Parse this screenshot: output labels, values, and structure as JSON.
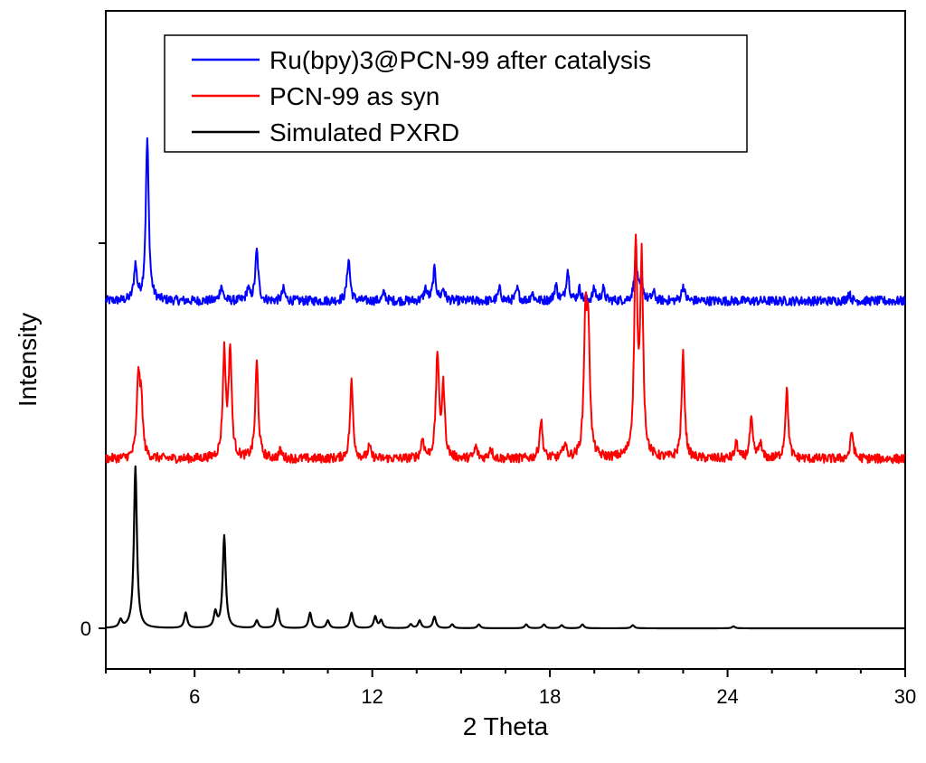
{
  "chart_data": {
    "type": "line",
    "xlabel": "2 Theta",
    "ylabel": "Intensity",
    "xlim": [
      3.0,
      30.0
    ],
    "x_ticks": [
      6,
      12,
      18,
      24,
      30
    ],
    "x_tick_labels": [
      "6",
      "12",
      "18",
      "24",
      "30"
    ],
    "y_tick_labels": [
      "0",
      ""
    ],
    "legend_position": "top-left",
    "series": [
      {
        "name": "Ru(bpy)3@PCN-99 after catalysis",
        "color": "#0000ff",
        "baseline": 0.85,
        "noise": 0.012,
        "peaks": [
          [
            4.0,
            0.09
          ],
          [
            4.4,
            0.42
          ],
          [
            6.9,
            0.04
          ],
          [
            7.8,
            0.03
          ],
          [
            8.1,
            0.13
          ],
          [
            9.0,
            0.03
          ],
          [
            11.2,
            0.11
          ],
          [
            12.4,
            0.02
          ],
          [
            13.8,
            0.03
          ],
          [
            14.1,
            0.08
          ],
          [
            14.4,
            0.03
          ],
          [
            16.3,
            0.03
          ],
          [
            16.9,
            0.03
          ],
          [
            17.4,
            0.02
          ],
          [
            18.2,
            0.04
          ],
          [
            18.6,
            0.08
          ],
          [
            19.0,
            0.03
          ],
          [
            19.5,
            0.03
          ],
          [
            19.8,
            0.03
          ],
          [
            20.9,
            0.11
          ],
          [
            21.1,
            0.05
          ],
          [
            21.5,
            0.02
          ],
          [
            22.5,
            0.04
          ],
          [
            28.1,
            0.02
          ]
        ]
      },
      {
        "name": "PCN-99 as syn",
        "color": "#ff0000",
        "baseline": 0.44,
        "noise": 0.012,
        "peaks": [
          [
            4.1,
            0.21
          ],
          [
            4.2,
            0.13
          ],
          [
            7.0,
            0.27
          ],
          [
            7.2,
            0.28
          ],
          [
            8.1,
            0.25
          ],
          [
            8.9,
            0.02
          ],
          [
            11.3,
            0.2
          ],
          [
            11.9,
            0.03
          ],
          [
            13.7,
            0.05
          ],
          [
            14.2,
            0.27
          ],
          [
            14.4,
            0.18
          ],
          [
            15.5,
            0.03
          ],
          [
            16.0,
            0.03
          ],
          [
            17.7,
            0.1
          ],
          [
            18.5,
            0.04
          ],
          [
            19.2,
            0.35
          ],
          [
            19.3,
            0.3
          ],
          [
            20.9,
            0.55
          ],
          [
            21.1,
            0.5
          ],
          [
            22.5,
            0.27
          ],
          [
            24.3,
            0.04
          ],
          [
            24.8,
            0.1
          ],
          [
            25.1,
            0.04
          ],
          [
            26.0,
            0.18
          ],
          [
            28.2,
            0.07
          ]
        ]
      },
      {
        "name": "Simulated PXRD",
        "color": "#000000",
        "baseline": 0.0,
        "noise": 0.0,
        "peaks": [
          [
            3.5,
            0.02
          ],
          [
            4.0,
            0.42
          ],
          [
            5.7,
            0.04
          ],
          [
            6.7,
            0.04
          ],
          [
            7.0,
            0.24
          ],
          [
            8.1,
            0.02
          ],
          [
            8.8,
            0.05
          ],
          [
            9.9,
            0.04
          ],
          [
            10.5,
            0.02
          ],
          [
            11.3,
            0.04
          ],
          [
            12.1,
            0.03
          ],
          [
            12.3,
            0.02
          ],
          [
            13.3,
            0.01
          ],
          [
            13.6,
            0.02
          ],
          [
            14.1,
            0.03
          ],
          [
            14.7,
            0.01
          ],
          [
            15.6,
            0.01
          ],
          [
            17.2,
            0.01
          ],
          [
            17.8,
            0.01
          ],
          [
            18.4,
            0.008
          ],
          [
            19.1,
            0.01
          ],
          [
            20.8,
            0.008
          ],
          [
            24.2,
            0.005
          ]
        ]
      }
    ]
  }
}
